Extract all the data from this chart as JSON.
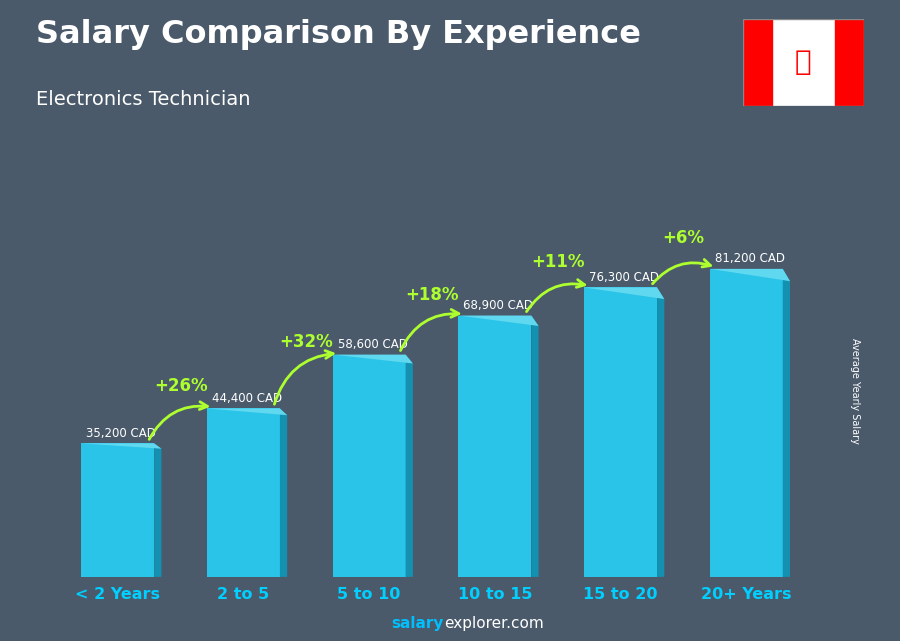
{
  "title": "Salary Comparison By Experience",
  "subtitle": "Electronics Technician",
  "ylabel": "Average Yearly Salary",
  "watermark_salary": "salary",
  "watermark_rest": "explorer.com",
  "categories": [
    "< 2 Years",
    "2 to 5",
    "5 to 10",
    "10 to 15",
    "15 to 20",
    "20+ Years"
  ],
  "values": [
    35200,
    44400,
    58600,
    68900,
    76300,
    81200
  ],
  "labels": [
    "35,200 CAD",
    "44,400 CAD",
    "58,600 CAD",
    "68,900 CAD",
    "76,300 CAD",
    "81,200 CAD"
  ],
  "pct_labels": [
    "+26%",
    "+32%",
    "+18%",
    "+11%",
    "+6%"
  ],
  "bar_color_face": "#29C4E8",
  "bar_color_right": "#1490B0",
  "bar_color_top": "#60D8F0",
  "bg_color": "#4a5a6a",
  "title_color": "#FFFFFF",
  "subtitle_color": "#FFFFFF",
  "label_color": "#FFFFFF",
  "pct_color": "#ADFF2F",
  "watermark_salary_color": "#00BFFF",
  "watermark_rest_color": "#FFFFFF",
  "ylabel_color": "#FFFFFF",
  "xtick_color": "#00CFFF",
  "ylim": [
    0,
    98000
  ],
  "bar_width": 0.58,
  "side_ratio": 0.1,
  "flag_red": "#FF0000",
  "flag_white": "#FFFFFF"
}
